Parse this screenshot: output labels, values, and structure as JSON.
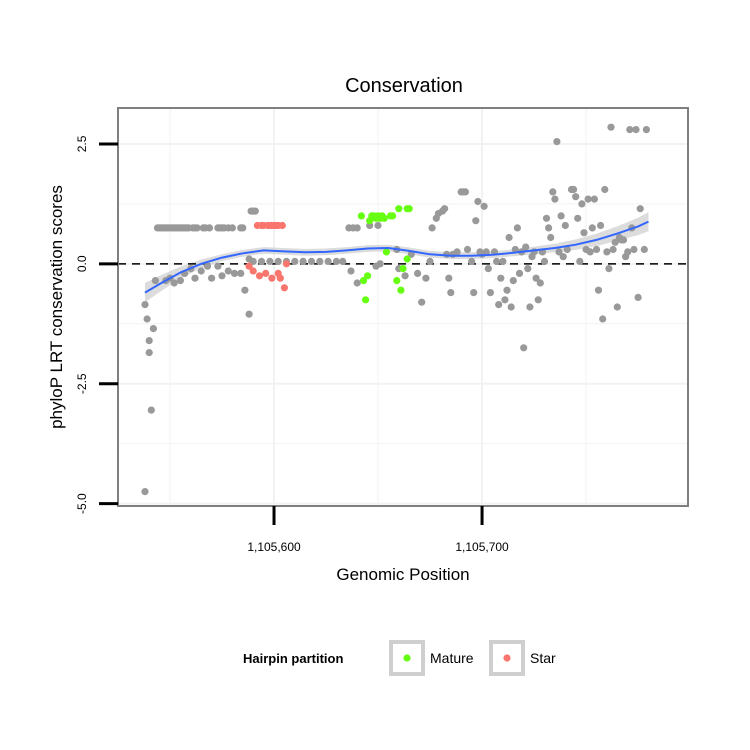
{
  "chart_data": {
    "type": "scatter",
    "title": "Conservation",
    "xlabel": "Genomic Position",
    "ylabel": "phyloP LRT conservation scores",
    "xlim": [
      1105525,
      1105799
    ],
    "ylim": [
      -5.05,
      3.25
    ],
    "x_ticks": [
      1105600,
      1105700
    ],
    "x_tick_labels": [
      "1,105,600",
      "1,105,700"
    ],
    "y_ticks": [
      -5.0,
      -2.5,
      0.0,
      2.5
    ],
    "y_tick_labels": [
      "-5.0",
      "-2.5",
      "0.0",
      "2.5"
    ],
    "reference_line": {
      "y": 0,
      "style": "dashed"
    },
    "grid": true,
    "legend": {
      "title": "Hairpin partition",
      "placement": "bottom",
      "entries": [
        {
          "label": "Mature",
          "color": "#66ff11"
        },
        {
          "label": "Star",
          "color": "#f8766d"
        }
      ]
    },
    "colors": {
      "other": "#999999",
      "Mature": "#66ff11",
      "Star": "#f8766d",
      "smooth": "#3366ff",
      "band": "#d0d0d0"
    },
    "series": [
      {
        "partition": "other",
        "points": [
          [
            1105538,
            -4.75
          ],
          [
            1105538,
            -0.85
          ],
          [
            1105539,
            -1.15
          ],
          [
            1105540,
            -1.6
          ],
          [
            1105540,
            -1.85
          ],
          [
            1105541,
            -3.05
          ],
          [
            1105542,
            -1.35
          ],
          [
            1105543,
            -0.35
          ],
          [
            1105544,
            0.75
          ],
          [
            1105545,
            0.75
          ],
          [
            1105546,
            0.75
          ],
          [
            1105547,
            0.75
          ],
          [
            1105548,
            0.75
          ],
          [
            1105549,
            0.75
          ],
          [
            1105550,
            0.75
          ],
          [
            1105551,
            0.75
          ],
          [
            1105552,
            0.75
          ],
          [
            1105553,
            0.75
          ],
          [
            1105554,
            0.75
          ],
          [
            1105555,
            0.75
          ],
          [
            1105556,
            0.75
          ],
          [
            1105557,
            0.75
          ],
          [
            1105558,
            0.75
          ],
          [
            1105559,
            0.75
          ],
          [
            1105561,
            0.75
          ],
          [
            1105562,
            0.75
          ],
          [
            1105563,
            0.75
          ],
          [
            1105566,
            0.75
          ],
          [
            1105567,
            0.75
          ],
          [
            1105569,
            0.75
          ],
          [
            1105573,
            0.75
          ],
          [
            1105574,
            0.75
          ],
          [
            1105575,
            0.75
          ],
          [
            1105576,
            0.75
          ],
          [
            1105578,
            0.75
          ],
          [
            1105580,
            0.75
          ],
          [
            1105584,
            0.75
          ],
          [
            1105585,
            0.75
          ],
          [
            1105548,
            -0.35
          ],
          [
            1105550,
            -0.3
          ],
          [
            1105552,
            -0.4
          ],
          [
            1105555,
            -0.35
          ],
          [
            1105557,
            -0.2
          ],
          [
            1105560,
            -0.1
          ],
          [
            1105562,
            -0.3
          ],
          [
            1105565,
            -0.15
          ],
          [
            1105568,
            -0.05
          ],
          [
            1105570,
            -0.3
          ],
          [
            1105573,
            -0.05
          ],
          [
            1105575,
            -0.25
          ],
          [
            1105578,
            -0.15
          ],
          [
            1105581,
            -0.2
          ],
          [
            1105584,
            -0.2
          ],
          [
            1105586,
            -0.55
          ],
          [
            1105588,
            -1.05
          ],
          [
            1105589,
            1.1
          ],
          [
            1105590,
            1.1
          ],
          [
            1105591,
            1.1
          ],
          [
            1105588,
            0.1
          ],
          [
            1105590,
            0.05
          ],
          [
            1105594,
            0.05
          ],
          [
            1105598,
            0.05
          ],
          [
            1105602,
            0.05
          ],
          [
            1105606,
            0.05
          ],
          [
            1105610,
            0.05
          ],
          [
            1105614,
            0.05
          ],
          [
            1105618,
            0.05
          ],
          [
            1105622,
            0.05
          ],
          [
            1105626,
            0.05
          ],
          [
            1105630,
            0.05
          ],
          [
            1105633,
            0.05
          ],
          [
            1105636,
            0.75
          ],
          [
            1105638,
            0.75
          ],
          [
            1105640,
            0.75
          ],
          [
            1105637,
            -0.15
          ],
          [
            1105640,
            -0.4
          ],
          [
            1105646,
            0.8
          ],
          [
            1105650,
            0.8
          ],
          [
            1105649,
            -0.05
          ],
          [
            1105651,
            0.0
          ],
          [
            1105659,
            0.3
          ],
          [
            1105660,
            -0.1
          ],
          [
            1105663,
            -0.25
          ],
          [
            1105666,
            0.2
          ],
          [
            1105669,
            -0.2
          ],
          [
            1105671,
            -0.8
          ],
          [
            1105673,
            -0.3
          ],
          [
            1105675,
            0.05
          ],
          [
            1105676,
            0.75
          ],
          [
            1105678,
            0.95
          ],
          [
            1105679,
            1.05
          ],
          [
            1105681,
            1.1
          ],
          [
            1105682,
            1.15
          ],
          [
            1105683,
            0.2
          ],
          [
            1105684,
            -0.3
          ],
          [
            1105685,
            -0.6
          ],
          [
            1105686,
            0.2
          ],
          [
            1105688,
            0.25
          ],
          [
            1105690,
            1.5
          ],
          [
            1105691,
            1.5
          ],
          [
            1105692,
            1.5
          ],
          [
            1105693,
            0.3
          ],
          [
            1105695,
            0.05
          ],
          [
            1105696,
            -0.6
          ],
          [
            1105697,
            0.9
          ],
          [
            1105698,
            1.3
          ],
          [
            1105699,
            0.25
          ],
          [
            1105700,
            0.2
          ],
          [
            1105701,
            1.2
          ],
          [
            1105702,
            0.25
          ],
          [
            1105703,
            -0.1
          ],
          [
            1105704,
            -0.6
          ],
          [
            1105706,
            0.25
          ],
          [
            1105707,
            0.05
          ],
          [
            1105708,
            -0.85
          ],
          [
            1105709,
            -0.3
          ],
          [
            1105710,
            0.05
          ],
          [
            1105711,
            -0.75
          ],
          [
            1105712,
            -0.55
          ],
          [
            1105713,
            0.55
          ],
          [
            1105714,
            -0.9
          ],
          [
            1105715,
            -0.35
          ],
          [
            1105716,
            0.3
          ],
          [
            1105717,
            0.75
          ],
          [
            1105718,
            -0.2
          ],
          [
            1105719,
            0.25
          ],
          [
            1105720,
            -1.75
          ],
          [
            1105721,
            0.35
          ],
          [
            1105722,
            -0.1
          ],
          [
            1105723,
            -0.9
          ],
          [
            1105724,
            0.15
          ],
          [
            1105725,
            0.25
          ],
          [
            1105726,
            -0.3
          ],
          [
            1105727,
            -0.75
          ],
          [
            1105728,
            -0.4
          ],
          [
            1105729,
            0.25
          ],
          [
            1105730,
            0.05
          ],
          [
            1105731,
            0.95
          ],
          [
            1105732,
            0.75
          ],
          [
            1105733,
            0.55
          ],
          [
            1105734,
            1.5
          ],
          [
            1105735,
            1.35
          ],
          [
            1105736,
            2.55
          ],
          [
            1105737,
            0.25
          ],
          [
            1105738,
            1.0
          ],
          [
            1105739,
            0.15
          ],
          [
            1105740,
            0.8
          ],
          [
            1105741,
            0.3
          ],
          [
            1105743,
            1.55
          ],
          [
            1105744,
            1.55
          ],
          [
            1105745,
            1.4
          ],
          [
            1105746,
            0.95
          ],
          [
            1105747,
            0.05
          ],
          [
            1105748,
            1.25
          ],
          [
            1105749,
            0.65
          ],
          [
            1105750,
            0.3
          ],
          [
            1105751,
            1.35
          ],
          [
            1105752,
            0.25
          ],
          [
            1105753,
            0.75
          ],
          [
            1105754,
            1.35
          ],
          [
            1105755,
            0.3
          ],
          [
            1105756,
            -0.55
          ],
          [
            1105757,
            0.8
          ],
          [
            1105758,
            -1.15
          ],
          [
            1105759,
            1.55
          ],
          [
            1105760,
            0.25
          ],
          [
            1105761,
            -0.1
          ],
          [
            1105762,
            2.85
          ],
          [
            1105763,
            0.3
          ],
          [
            1105764,
            0.45
          ],
          [
            1105765,
            -0.9
          ],
          [
            1105766,
            0.55
          ],
          [
            1105767,
            0.5
          ],
          [
            1105768,
            0.5
          ],
          [
            1105769,
            0.15
          ],
          [
            1105770,
            0.25
          ],
          [
            1105771,
            2.8
          ],
          [
            1105772,
            0.75
          ],
          [
            1105773,
            0.3
          ],
          [
            1105774,
            2.8
          ],
          [
            1105775,
            -0.7
          ],
          [
            1105776,
            1.15
          ],
          [
            1105778,
            0.3
          ],
          [
            1105779,
            2.8
          ]
        ]
      },
      {
        "partition": "Mature",
        "points": [
          [
            1105642,
            1.0
          ],
          [
            1105643,
            -0.35
          ],
          [
            1105644,
            -0.75
          ],
          [
            1105645,
            -0.25
          ],
          [
            1105646,
            0.9
          ],
          [
            1105647,
            1.0
          ],
          [
            1105648,
            1.0
          ],
          [
            1105649,
            0.95
          ],
          [
            1105650,
            1.0
          ],
          [
            1105651,
            0.95
          ],
          [
            1105652,
            1.0
          ],
          [
            1105653,
            0.95
          ],
          [
            1105654,
            0.25
          ],
          [
            1105656,
            1.0
          ],
          [
            1105657,
            1.0
          ],
          [
            1105659,
            -0.35
          ],
          [
            1105660,
            1.15
          ],
          [
            1105661,
            -0.55
          ],
          [
            1105662,
            -0.1
          ],
          [
            1105664,
            1.15
          ],
          [
            1105665,
            1.15
          ],
          [
            1105664,
            0.1
          ]
        ]
      },
      {
        "partition": "Star",
        "points": [
          [
            1105588,
            -0.05
          ],
          [
            1105590,
            -0.15
          ],
          [
            1105592,
            0.8
          ],
          [
            1105593,
            -0.25
          ],
          [
            1105594,
            0.8
          ],
          [
            1105595,
            0.8
          ],
          [
            1105596,
            -0.2
          ],
          [
            1105597,
            0.8
          ],
          [
            1105598,
            0.8
          ],
          [
            1105599,
            0.8
          ],
          [
            1105599,
            -0.3
          ],
          [
            1105600,
            0.8
          ],
          [
            1105601,
            0.8
          ],
          [
            1105602,
            0.8
          ],
          [
            1105602,
            -0.2
          ],
          [
            1105603,
            -0.3
          ],
          [
            1105604,
            0.8
          ],
          [
            1105605,
            -0.5
          ],
          [
            1105606,
            0.0
          ]
        ]
      }
    ],
    "smooth": {
      "x": [
        1105538,
        1105545,
        1105555,
        1105565,
        1105575,
        1105585,
        1105595,
        1105605,
        1105615,
        1105625,
        1105635,
        1105645,
        1105655,
        1105665,
        1105675,
        1105685,
        1105695,
        1105705,
        1105715,
        1105725,
        1105735,
        1105745,
        1105755,
        1105765,
        1105775,
        1105780
      ],
      "y": [
        -0.6,
        -0.42,
        -0.18,
        0.0,
        0.13,
        0.22,
        0.28,
        0.26,
        0.24,
        0.25,
        0.28,
        0.32,
        0.33,
        0.27,
        0.2,
        0.17,
        0.17,
        0.19,
        0.23,
        0.28,
        0.33,
        0.4,
        0.5,
        0.63,
        0.78,
        0.88
      ],
      "band": [
        0.2,
        0.17,
        0.12,
        0.09,
        0.07,
        0.07,
        0.07,
        0.07,
        0.07,
        0.07,
        0.07,
        0.07,
        0.07,
        0.07,
        0.07,
        0.07,
        0.07,
        0.07,
        0.07,
        0.08,
        0.09,
        0.11,
        0.13,
        0.15,
        0.18,
        0.2
      ]
    }
  }
}
